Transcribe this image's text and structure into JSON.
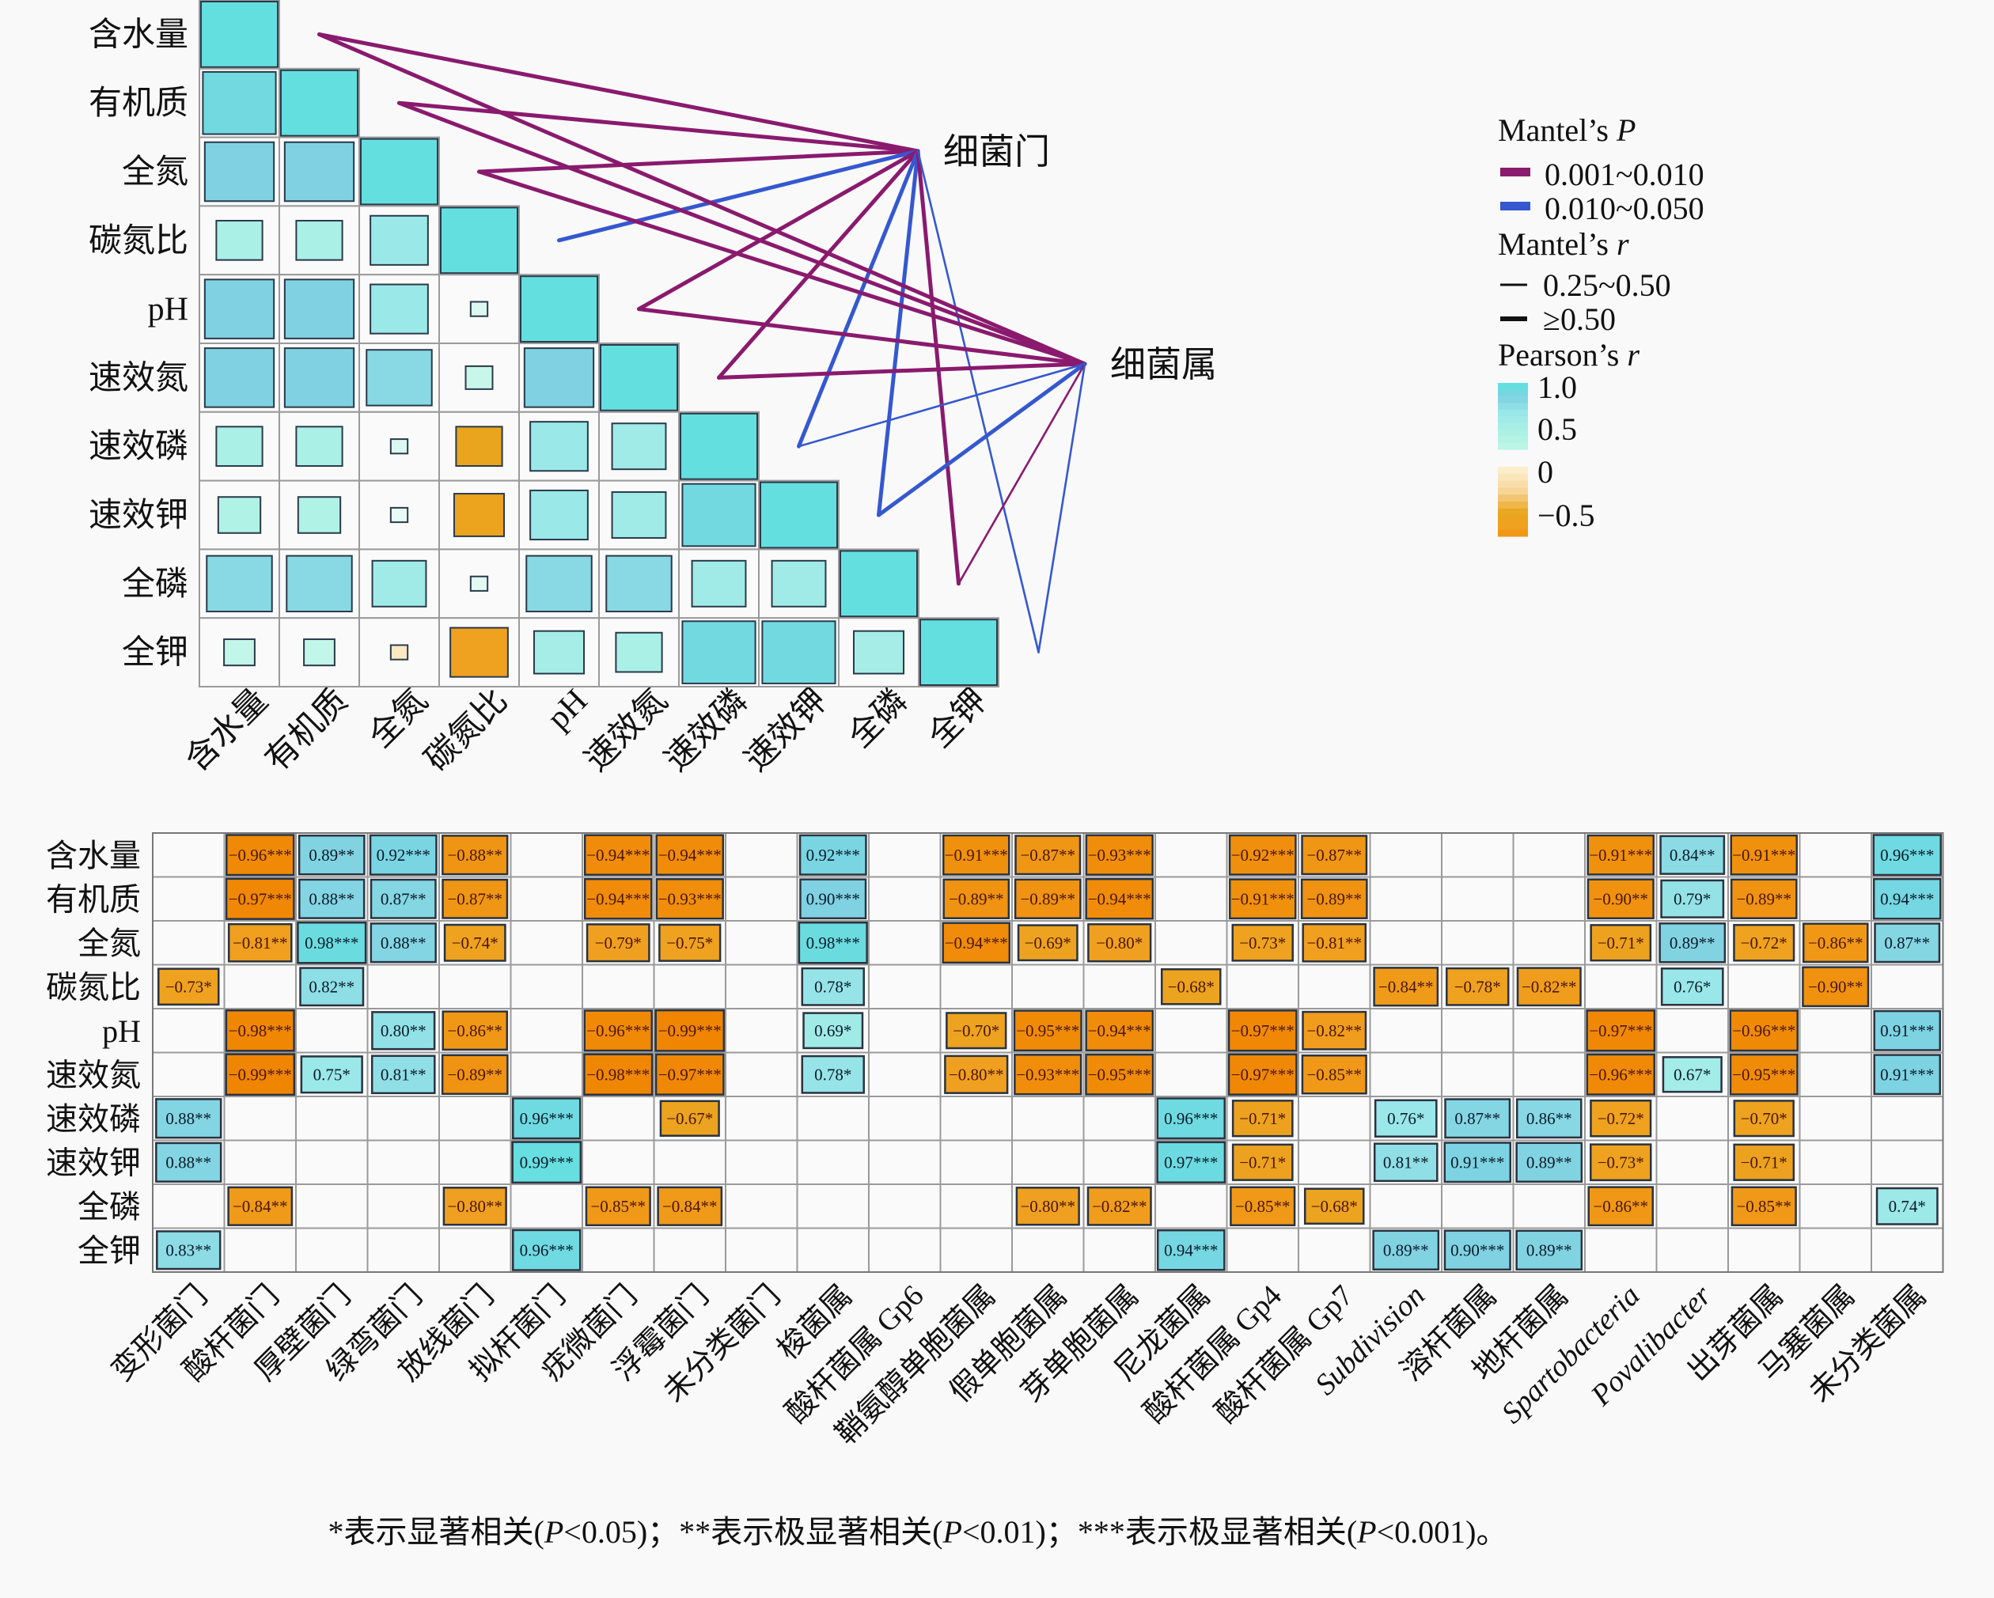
{
  "chart_data": [
    {
      "type": "heatmap",
      "title": "",
      "subtitle": "Pearson correlation among soil properties with Mantel test links",
      "variables": [
        "含水量",
        "有机质",
        "全氮",
        "碳氮比",
        "pH",
        "速效氮",
        "速效磷",
        "速效钾",
        "全磷",
        "全钾"
      ],
      "pearson_r_lower": [
        [
          1.0
        ],
        [
          0.95,
          1.0
        ],
        [
          0.9,
          0.9,
          1.0
        ],
        [
          0.6,
          0.6,
          0.75,
          1.0
        ],
        [
          0.9,
          0.9,
          0.75,
          0.2,
          1.0
        ],
        [
          0.9,
          0.9,
          0.85,
          0.35,
          0.9,
          1.0
        ],
        [
          0.6,
          0.6,
          0.2,
          -0.6,
          0.75,
          0.7,
          1.0
        ],
        [
          0.55,
          0.55,
          0.1,
          -0.65,
          0.75,
          0.7,
          0.95,
          1.0
        ],
        [
          0.85,
          0.85,
          0.7,
          0.15,
          0.85,
          0.85,
          0.7,
          0.7,
          1.0
        ],
        [
          0.4,
          0.4,
          -0.1,
          -0.75,
          0.65,
          0.6,
          0.95,
          0.95,
          0.65,
          1.0
        ]
      ],
      "mantel_sources": [
        "细菌门",
        "细菌属"
      ],
      "mantel_links": [
        {
          "source": 0,
          "target": "含水量",
          "p": "0.001~0.010",
          "r": "≥0.50"
        },
        {
          "source": 0,
          "target": "有机质",
          "p": "0.001~0.010",
          "r": "≥0.50"
        },
        {
          "source": 0,
          "target": "全氮",
          "p": "0.001~0.010",
          "r": "≥0.50"
        },
        {
          "source": 0,
          "target": "碳氮比",
          "p": "0.010~0.050",
          "r": "≥0.50"
        },
        {
          "source": 0,
          "target": "pH",
          "p": "0.001~0.010",
          "r": "≥0.50"
        },
        {
          "source": 0,
          "target": "速效氮",
          "p": "0.001~0.010",
          "r": "≥0.50"
        },
        {
          "source": 0,
          "target": "速效磷",
          "p": "0.010~0.050",
          "r": "≥0.50"
        },
        {
          "source": 0,
          "target": "速效钾",
          "p": "0.010~0.050",
          "r": "≥0.50"
        },
        {
          "source": 0,
          "target": "全磷",
          "p": "0.001~0.010",
          "r": "≥0.50"
        },
        {
          "source": 0,
          "target": "全钾",
          "p": "0.010~0.050",
          "r": "0.25~0.50"
        },
        {
          "source": 1,
          "target": "含水量",
          "p": "0.001~0.010",
          "r": "≥0.50"
        },
        {
          "source": 1,
          "target": "有机质",
          "p": "0.001~0.010",
          "r": "≥0.50"
        },
        {
          "source": 1,
          "target": "全氮",
          "p": "0.001~0.010",
          "r": "≥0.50"
        },
        {
          "source": 1,
          "target": "pH",
          "p": "0.001~0.010",
          "r": "≥0.50"
        },
        {
          "source": 1,
          "target": "速效氮",
          "p": "0.001~0.010",
          "r": "≥0.50"
        },
        {
          "source": 1,
          "target": "速效磷",
          "p": "0.010~0.050",
          "r": "0.25~0.50"
        },
        {
          "source": 1,
          "target": "速效钾",
          "p": "0.010~0.050",
          "r": "≥0.50"
        },
        {
          "source": 1,
          "target": "全磷",
          "p": "0.001~0.010",
          "r": "0.25~0.50"
        },
        {
          "source": 1,
          "target": "全钾",
          "p": "0.010~0.050",
          "r": "0.25~0.50"
        }
      ],
      "legend": {
        "mantel_p_title": "Mantel’s",
        "mantel_p_sym": "P",
        "p_classes": [
          {
            "label": "0.001~0.010",
            "color": "#8a1a6e"
          },
          {
            "label": "0.010~0.050",
            "color": "#3558d0"
          }
        ],
        "mantel_r_title": "Mantel’s",
        "mantel_r_sym": "r",
        "r_classes": [
          {
            "label": "0.25~0.50"
          },
          {
            "label": "≥0.50"
          }
        ],
        "pearson_title": "Pearson’s",
        "pearson_sym": "r",
        "scale_ticks": [
          "1.0",
          "0.5",
          "0",
          "−0.5"
        ],
        "placement": "top-right"
      }
    },
    {
      "type": "heatmap",
      "rows": [
        "含水量",
        "有机质",
        "全氮",
        "碳氮比",
        "pH",
        "速效氮",
        "速效磷",
        "速效钾",
        "全磷",
        "全钾"
      ],
      "columns": [
        {
          "label": "变形菌门"
        },
        {
          "label": "酸杆菌门"
        },
        {
          "label": "厚壁菌门"
        },
        {
          "label": "绿弯菌门"
        },
        {
          "label": "放线菌门"
        },
        {
          "label": "拟杆菌门"
        },
        {
          "label": "疣微菌门"
        },
        {
          "label": "浮霉菌门"
        },
        {
          "label": "未分类菌门"
        },
        {
          "label": "梭菌属"
        },
        {
          "label": "酸杆菌属 Gp6"
        },
        {
          "label": "鞘氨醇单胞菌属"
        },
        {
          "label": "假单胞菌属"
        },
        {
          "label": "芽单胞菌属"
        },
        {
          "label": "尼龙菌属"
        },
        {
          "label": "酸杆菌属 Gp4"
        },
        {
          "label": "酸杆菌属 Gp7"
        },
        {
          "label": "Subdivision",
          "italic": true
        },
        {
          "label": "溶杆菌属"
        },
        {
          "label": "地杆菌属"
        },
        {
          "label": "Spartobacteria",
          "italic": true
        },
        {
          "label": "Povalibacter",
          "italic": true
        },
        {
          "label": "出芽菌属"
        },
        {
          "label": "马塞菌属"
        },
        {
          "label": "未分类菌属"
        }
      ],
      "cells": [
        [
          "",
          "−0.96***",
          "0.89**",
          "0.92***",
          "−0.88**",
          "",
          "−0.94***",
          "−0.94***",
          "",
          "0.92***",
          "",
          "−0.91***",
          "−0.87**",
          "−0.93***",
          "",
          "−0.92***",
          "−0.87**",
          "",
          "",
          "",
          "−0.91***",
          "0.84**",
          "−0.91***",
          "",
          "0.96***"
        ],
        [
          "",
          "−0.97***",
          "0.88**",
          "0.87**",
          "−0.87**",
          "",
          "−0.94***",
          "−0.93***",
          "",
          "0.90***",
          "",
          "−0.89**",
          "−0.89**",
          "−0.94***",
          "",
          "−0.91***",
          "−0.89**",
          "",
          "",
          "",
          "−0.90**",
          "0.79*",
          "−0.89**",
          "",
          "0.94***"
        ],
        [
          "",
          "−0.81**",
          "0.98***",
          "0.88**",
          "−0.74*",
          "",
          "−0.79*",
          "−0.75*",
          "",
          "0.98***",
          "",
          "−0.94***",
          "−0.69*",
          "−0.80*",
          "",
          "−0.73*",
          "−0.81**",
          "",
          "",
          "",
          "−0.71*",
          "0.89**",
          "−0.72*",
          "−0.86**",
          "0.87**"
        ],
        [
          "−0.73*",
          "",
          "0.82**",
          "",
          "",
          "",
          "",
          "",
          "",
          "0.78*",
          "",
          "",
          "",
          "",
          "−0.68*",
          "",
          "",
          "−0.84**",
          "−0.78*",
          "−0.82**",
          "",
          "0.76*",
          "",
          "−0.90**",
          ""
        ],
        [
          "",
          "−0.98***",
          "",
          "0.80**",
          "−0.86**",
          "",
          "−0.96***",
          "−0.99***",
          "",
          "0.69*",
          "",
          "−0.70*",
          "−0.95***",
          "−0.94***",
          "",
          "−0.97***",
          "−0.82**",
          "",
          "",
          "",
          "−0.97***",
          "",
          "−0.96***",
          "",
          "0.91***"
        ],
        [
          "",
          "−0.99***",
          "0.75*",
          "0.81**",
          "−0.89**",
          "",
          "−0.98***",
          "−0.97***",
          "",
          "0.78*",
          "",
          "−0.80**",
          "−0.93***",
          "−0.95***",
          "",
          "−0.97***",
          "−0.85**",
          "",
          "",
          "",
          "−0.96***",
          "0.67*",
          "−0.95***",
          "",
          "0.91***"
        ],
        [
          "0.88**",
          "",
          "",
          "",
          "",
          "0.96***",
          "",
          "−0.67*",
          "",
          "",
          "",
          "",
          "",
          "",
          "0.96***",
          "−0.71*",
          "",
          "0.76*",
          "0.87**",
          "0.86**",
          "−0.72*",
          "",
          "−0.70*",
          "",
          ""
        ],
        [
          "0.88**",
          "",
          "",
          "",
          "",
          "0.99***",
          "",
          "",
          "",
          "",
          "",
          "",
          "",
          "",
          "0.97***",
          "−0.71*",
          "",
          "0.81**",
          "0.91***",
          "0.89**",
          "−0.73*",
          "",
          "−0.71*",
          "",
          ""
        ],
        [
          "",
          "−0.84**",
          "",
          "",
          "−0.80**",
          "",
          "−0.85**",
          "−0.84**",
          "",
          "",
          "",
          "",
          "−0.80**",
          "−0.82**",
          "",
          "−0.85**",
          "−0.68*",
          "",
          "",
          "",
          "−0.86**",
          "",
          "−0.85**",
          "",
          "0.74*"
        ],
        [
          "0.83**",
          "",
          "",
          "",
          "",
          "0.96***",
          "",
          "",
          "",
          "",
          "",
          "",
          "",
          "",
          "0.94***",
          "",
          "",
          "0.89**",
          "0.90***",
          "0.89**",
          "",
          "",
          "",
          "",
          ""
        ]
      ]
    }
  ],
  "footnote": "*表示显著相关(P<0.05)；**表示极显著相关(P<0.01)；***表示极显著相关(P<0.001)。"
}
